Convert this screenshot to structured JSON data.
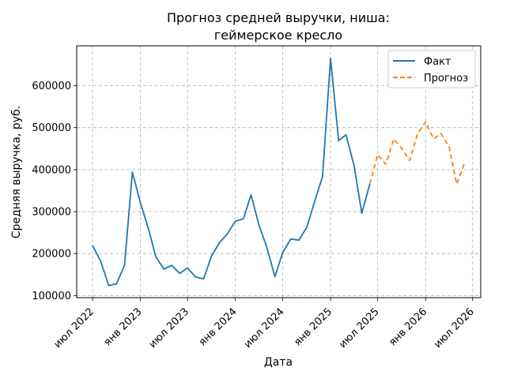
{
  "chart_data": {
    "type": "line",
    "title_line1": "Прогноз средней выручки, ниша:",
    "title_line2": "геймерское кресло",
    "xlabel": "Дата",
    "ylabel": "Средняя выручка, руб.",
    "ylim": [
      95000,
      695000
    ],
    "xlim": [
      "2022-05-01",
      "2026-08-01"
    ],
    "grid": true,
    "legend_position": "top-right",
    "y_ticks": [
      100000,
      200000,
      300000,
      400000,
      500000,
      600000
    ],
    "y_tick_labels": [
      "100000",
      "200000",
      "300000",
      "400000",
      "500000",
      "600000"
    ],
    "x_ticks": [
      "2022-07-01",
      "2023-01-01",
      "2023-07-01",
      "2024-01-01",
      "2024-07-01",
      "2025-01-01",
      "2025-07-01",
      "2026-01-01",
      "2026-07-01"
    ],
    "x_tick_labels": [
      "июл 2022",
      "янв 2023",
      "июл 2023",
      "янв 2024",
      "июл 2024",
      "янв 2025",
      "июл 2025",
      "янв 2026",
      "июл 2026"
    ],
    "series": [
      {
        "name": "Факт",
        "color": "#1f77b4",
        "style": "solid",
        "x": [
          "2022-07-01",
          "2022-08-01",
          "2022-09-01",
          "2022-10-01",
          "2022-11-01",
          "2022-12-01",
          "2023-01-01",
          "2023-02-01",
          "2023-03-01",
          "2023-04-01",
          "2023-05-01",
          "2023-06-01",
          "2023-07-01",
          "2023-08-01",
          "2023-09-01",
          "2023-10-01",
          "2023-11-01",
          "2023-12-01",
          "2024-01-01",
          "2024-02-01",
          "2024-03-01",
          "2024-04-01",
          "2024-05-01",
          "2024-06-01",
          "2024-07-01",
          "2024-08-01",
          "2024-09-01",
          "2024-10-01",
          "2024-11-01",
          "2024-12-01",
          "2025-01-01",
          "2025-02-01",
          "2025-03-01",
          "2025-04-01",
          "2025-05-01",
          "2025-06-01"
        ],
        "values": [
          219000,
          182000,
          124000,
          128000,
          172000,
          394000,
          321000,
          259000,
          193000,
          163000,
          172000,
          153000,
          166000,
          144000,
          140000,
          194000,
          226000,
          247000,
          277000,
          283000,
          340000,
          267000,
          215000,
          145000,
          203000,
          235000,
          232000,
          262000,
          325000,
          383000,
          665000,
          469000,
          483000,
          410000,
          296000,
          366000
        ]
      },
      {
        "name": "Прогноз",
        "color": "#ff7f0e",
        "style": "dashed",
        "x": [
          "2025-06-01",
          "2025-07-01",
          "2025-08-01",
          "2025-09-01",
          "2025-10-01",
          "2025-11-01",
          "2025-12-01",
          "2026-01-01",
          "2026-02-01",
          "2026-03-01",
          "2026-04-01",
          "2026-05-01",
          "2026-06-01"
        ],
        "values": [
          366000,
          436000,
          413000,
          473000,
          451000,
          422000,
          485000,
          514000,
          473000,
          486000,
          455000,
          365000,
          418000
        ]
      }
    ]
  }
}
